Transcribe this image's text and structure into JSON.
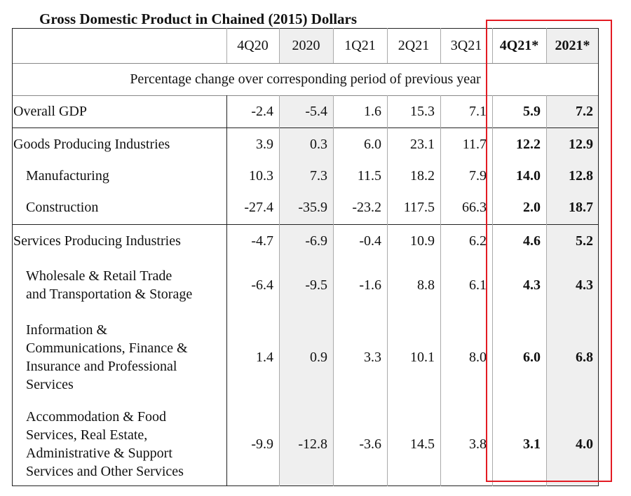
{
  "title": "Gross Domestic Product in Chained (2015) Dollars",
  "columns": [
    "4Q20",
    "2020",
    "1Q21",
    "2Q21",
    "3Q21",
    "4Q21*",
    "2021*"
  ],
  "note": "Percentage change over corresponding period of previous year",
  "rows": [
    {
      "label": [
        "Overall GDP"
      ],
      "indent": false,
      "values": [
        "-2.4",
        "-5.4",
        "1.6",
        "15.3",
        "7.1",
        "5.9",
        "7.2"
      ]
    },
    {
      "label": [
        "Goods Producing Industries"
      ],
      "indent": false,
      "values": [
        "3.9",
        "0.3",
        "6.0",
        "23.1",
        "11.7",
        "12.2",
        "12.9"
      ]
    },
    {
      "label": [
        "Manufacturing"
      ],
      "indent": true,
      "values": [
        "10.3",
        "7.3",
        "11.5",
        "18.2",
        "7.9",
        "14.0",
        "12.8"
      ]
    },
    {
      "label": [
        "Construction"
      ],
      "indent": true,
      "values": [
        "-27.4",
        "-35.9",
        "-23.2",
        "117.5",
        "66.3",
        "2.0",
        "18.7"
      ]
    },
    {
      "label": [
        "Services Producing Industries"
      ],
      "indent": false,
      "values": [
        "-4.7",
        "-6.9",
        "-0.4",
        "10.9",
        "6.2",
        "4.6",
        "5.2"
      ]
    },
    {
      "label": [
        "Wholesale & Retail Trade",
        "and Transportation & Storage"
      ],
      "indent": true,
      "values": [
        "-6.4",
        "-9.5",
        "-1.6",
        "8.8",
        "6.1",
        "4.3",
        "4.3"
      ]
    },
    {
      "label": [
        "Information &",
        "Communications, Finance &",
        "Insurance and Professional",
        "Services"
      ],
      "indent": true,
      "values": [
        "1.4",
        "0.9",
        "3.3",
        "10.1",
        "8.0",
        "6.0",
        "6.8"
      ]
    },
    {
      "label": [
        "Accommodation & Food",
        "Services, Real Estate,",
        "Administrative & Support",
        "Services and Other Services"
      ],
      "indent": true,
      "values": [
        "-9.9",
        "-12.8",
        "-3.6",
        "14.5",
        "3.8",
        "3.1",
        "4.0"
      ]
    }
  ],
  "colors": {
    "highlight": "#e31b23",
    "shade": "#efefef"
  }
}
